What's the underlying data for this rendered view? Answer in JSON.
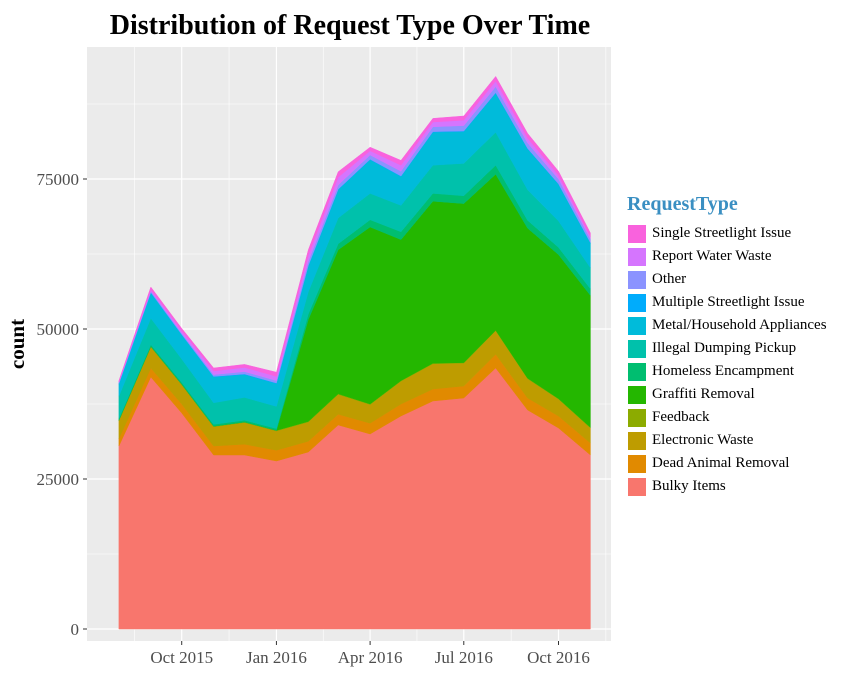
{
  "chart_data": {
    "type": "area",
    "stacked": true,
    "title": "Distribution of Request Type Over Time",
    "xlabel": "",
    "ylabel": "count",
    "x": [
      "2015-08-01",
      "2015-09-01",
      "2015-10-01",
      "2015-11-01",
      "2015-12-01",
      "2016-01-01",
      "2016-02-01",
      "2016-03-01",
      "2016-04-01",
      "2016-05-01",
      "2016-06-01",
      "2016-07-01",
      "2016-08-01",
      "2016-09-01",
      "2016-10-01",
      "2016-11-01"
    ],
    "x_ticks": [
      {
        "date": "2015-10-01",
        "label": "Oct 2015"
      },
      {
        "date": "2016-01-01",
        "label": "Jan 2016"
      },
      {
        "date": "2016-04-01",
        "label": "Apr 2016"
      },
      {
        "date": "2016-07-01",
        "label": "Jul 2016"
      },
      {
        "date": "2016-10-01",
        "label": "Oct 2016"
      }
    ],
    "xlim": [
      "2015-07-01",
      "2016-11-21"
    ],
    "ylim": [
      -2000,
      97000
    ],
    "y_ticks": [
      0,
      25000,
      50000,
      75000
    ],
    "y_tick_labels": [
      "0",
      "25000",
      "50000",
      "75000"
    ],
    "grid": true,
    "legend_title": "RequestType",
    "legend_position": "right",
    "series": [
      {
        "name": "Bulky Items",
        "color": "#F8766D",
        "values": [
          30500,
          42000,
          36000,
          29000,
          29000,
          28000,
          29500,
          34000,
          32500,
          35500,
          38000,
          38500,
          43500,
          36500,
          33500,
          29000
        ]
      },
      {
        "name": "Dead Animal Removal",
        "color": "#E18A00",
        "values": [
          1200,
          1500,
          1500,
          1500,
          1800,
          1800,
          1800,
          1800,
          1800,
          2000,
          2000,
          2000,
          2300,
          2000,
          2000,
          2000
        ]
      },
      {
        "name": "Electronic Waste",
        "color": "#BE9C00",
        "values": [
          3000,
          3500,
          3200,
          3200,
          3600,
          3200,
          3200,
          3300,
          3100,
          3800,
          4200,
          3800,
          3900,
          3200,
          2800,
          2500
        ]
      },
      {
        "name": "Feedback",
        "color": "#8CAB00",
        "values": [
          100,
          100,
          100,
          100,
          100,
          100,
          100,
          100,
          100,
          100,
          100,
          100,
          100,
          100,
          100,
          100
        ]
      },
      {
        "name": "Graffiti Removal",
        "color": "#24B700",
        "values": [
          0,
          0,
          0,
          0,
          0,
          0,
          17000,
          24000,
          29500,
          23500,
          27000,
          26500,
          26000,
          25000,
          24000,
          22000
        ]
      },
      {
        "name": "Homeless Encampment",
        "color": "#00BE70",
        "values": [
          300,
          300,
          300,
          300,
          300,
          300,
          900,
          1000,
          1200,
          1300,
          1300,
          1300,
          1500,
          1300,
          1200,
          1100
        ]
      },
      {
        "name": "Illegal Dumping Pickup",
        "color": "#00C1AB",
        "values": [
          3700,
          4400,
          3900,
          3600,
          3800,
          3700,
          3700,
          4300,
          4400,
          4400,
          4700,
          5400,
          5500,
          5100,
          4400,
          3500
        ]
      },
      {
        "name": "Metal/Household Appliances",
        "color": "#00BBDA",
        "values": [
          2000,
          4200,
          4000,
          4300,
          3800,
          3800,
          4300,
          4700,
          5600,
          4800,
          5500,
          5300,
          6500,
          6800,
          6100,
          4100
        ]
      },
      {
        "name": "Multiple Streetlight Issue",
        "color": "#00ACFC",
        "values": [
          100,
          100,
          100,
          100,
          100,
          100,
          100,
          100,
          100,
          100,
          100,
          100,
          100,
          100,
          100,
          100
        ]
      },
      {
        "name": "Other",
        "color": "#8B93FF",
        "values": [
          200,
          200,
          200,
          300,
          400,
          400,
          700,
          700,
          700,
          800,
          800,
          900,
          1000,
          900,
          800,
          600
        ]
      },
      {
        "name": "Report Water Waste",
        "color": "#D575FE",
        "values": [
          100,
          300,
          400,
          600,
          700,
          700,
          1000,
          1300,
          700,
          1000,
          800,
          900,
          900,
          800,
          600,
          400
        ]
      },
      {
        "name": "Single Streetlight Issue",
        "color": "#F962DD",
        "values": [
          200,
          400,
          400,
          500,
          500,
          700,
          900,
          900,
          600,
          800,
          600,
          700,
          800,
          800,
          700,
          600
        ]
      }
    ],
    "stack_order": [
      "Bulky Items",
      "Dead Animal Removal",
      "Electronic Waste",
      "Feedback",
      "Graffiti Removal",
      "Homeless Encampment",
      "Illegal Dumping Pickup",
      "Metal/Household Appliances",
      "Multiple Streetlight Issue",
      "Other",
      "Report Water Waste",
      "Single Streetlight Issue"
    ],
    "legend_order": [
      "Single Streetlight Issue",
      "Report Water Waste",
      "Other",
      "Multiple Streetlight Issue",
      "Metal/Household Appliances",
      "Illegal Dumping Pickup",
      "Homeless Encampment",
      "Graffiti Removal",
      "Feedback",
      "Electronic Waste",
      "Dead Animal Removal",
      "Bulky Items"
    ],
    "panel_background": "#EBEBEB",
    "grid_color": "#FFFFFF",
    "legend_title_color": "#3A8FC2"
  }
}
